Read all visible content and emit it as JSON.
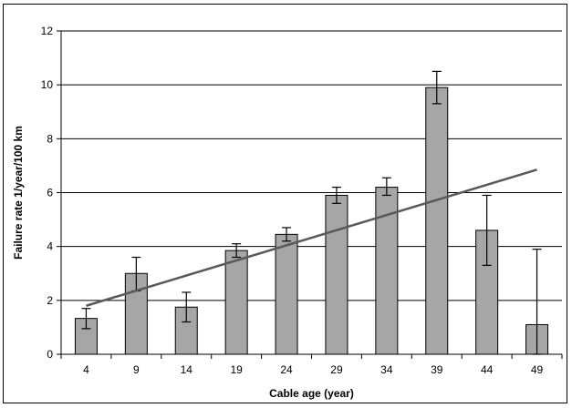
{
  "chart_data": {
    "type": "bar",
    "title": "",
    "xlabel": "Cable age (year)",
    "ylabel": "Failure rate 1/year/100 km",
    "categories": [
      "4",
      "9",
      "14",
      "19",
      "24",
      "29",
      "34",
      "39",
      "44",
      "49"
    ],
    "values": [
      1.33,
      3.0,
      1.75,
      3.85,
      4.45,
      5.9,
      6.2,
      9.9,
      4.6,
      1.1
    ],
    "error_bars": {
      "lower": [
        0.95,
        2.35,
        1.2,
        3.6,
        4.2,
        5.6,
        5.9,
        9.3,
        3.3,
        0.0
      ],
      "upper": [
        1.7,
        3.6,
        2.3,
        4.1,
        4.7,
        6.2,
        6.55,
        10.5,
        5.9,
        3.9
      ]
    },
    "trendline": {
      "type": "linear",
      "start": {
        "x": "4",
        "y": 1.8
      },
      "end": {
        "x": "49",
        "y": 6.85
      }
    },
    "ylim": [
      0,
      12
    ],
    "yticks": [
      0,
      2,
      4,
      6,
      8,
      10,
      12
    ],
    "grid": "horizontal",
    "legend": "none",
    "colors": {
      "bar_fill": "#a6a6a6",
      "bar_stroke": "#000000",
      "gridline": "#000000",
      "trendline": "#595959",
      "error_bar": "#000000"
    }
  }
}
